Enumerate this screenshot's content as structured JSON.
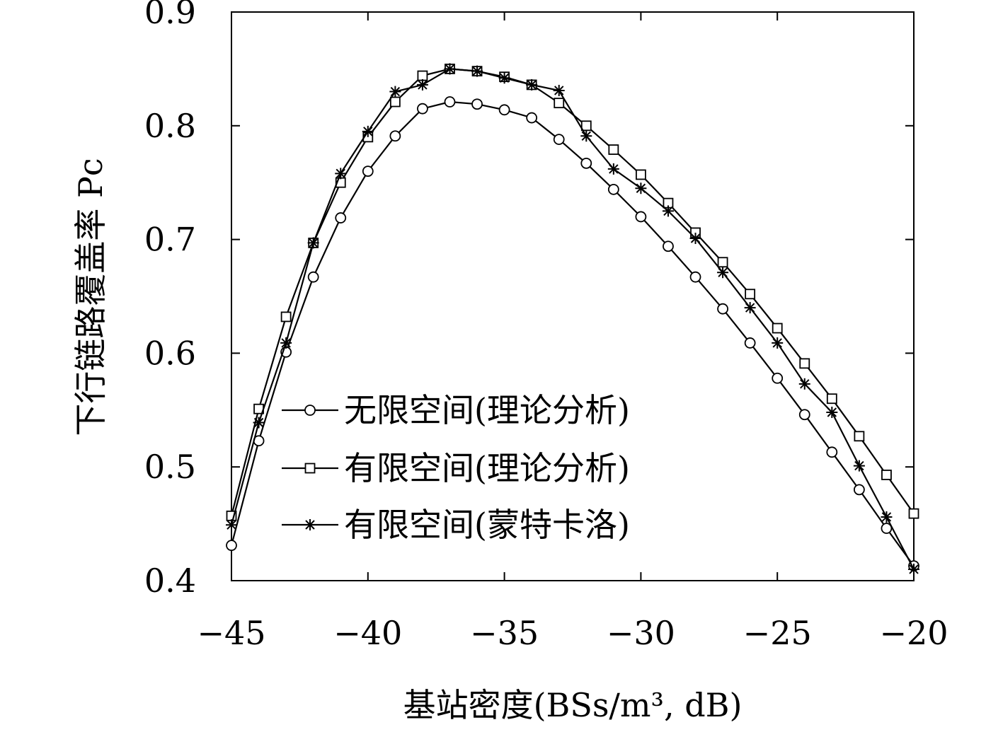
{
  "chart_data": {
    "type": "line",
    "xlabel": "基站密度(BSs/m³, dB)",
    "ylabel": "下行链路覆盖率 Pc",
    "xlim": [
      -45,
      -20
    ],
    "ylim": [
      0.4,
      0.9
    ],
    "x_ticks": [
      "−45",
      "−40",
      "−35",
      "−30",
      "−25",
      "−20"
    ],
    "y_ticks": [
      "0.4",
      "0.5",
      "0.6",
      "0.7",
      "0.8",
      "0.9"
    ],
    "legend_position": "lower-left",
    "grid": false,
    "x": [
      -45,
      -44,
      -43,
      -42,
      -41,
      -40,
      -39,
      -38,
      -37,
      -36,
      -35,
      -34,
      -33,
      -32,
      -31,
      -30,
      -29,
      -28,
      -27,
      -26,
      -25,
      -24,
      -23,
      -22,
      -21,
      -20
    ],
    "series": [
      {
        "name": "无限空间(理论分析)",
        "marker": "circle",
        "values": [
          0.431,
          0.523,
          0.601,
          0.667,
          0.719,
          0.76,
          0.791,
          0.815,
          0.821,
          0.819,
          0.814,
          0.807,
          0.788,
          0.767,
          0.744,
          0.72,
          0.694,
          0.667,
          0.639,
          0.609,
          0.578,
          0.546,
          0.513,
          0.48,
          0.446,
          0.413
        ]
      },
      {
        "name": "有限空间(理论分析)",
        "marker": "square",
        "values": [
          0.457,
          0.551,
          0.632,
          0.697,
          0.75,
          0.79,
          0.821,
          0.844,
          0.85,
          0.848,
          0.843,
          0.836,
          0.82,
          0.8,
          0.779,
          0.757,
          0.732,
          0.706,
          0.68,
          0.652,
          0.622,
          0.591,
          0.56,
          0.527,
          0.493,
          0.459
        ]
      },
      {
        "name": "有限空间(蒙特卡洛)",
        "marker": "star",
        "values": [
          0.449,
          0.539,
          0.609,
          0.697,
          0.758,
          0.795,
          0.83,
          0.836,
          0.85,
          0.848,
          0.842,
          0.836,
          0.831,
          0.791,
          0.762,
          0.745,
          0.725,
          0.701,
          0.671,
          0.64,
          0.609,
          0.573,
          0.548,
          0.501,
          0.456,
          0.41
        ]
      }
    ]
  }
}
